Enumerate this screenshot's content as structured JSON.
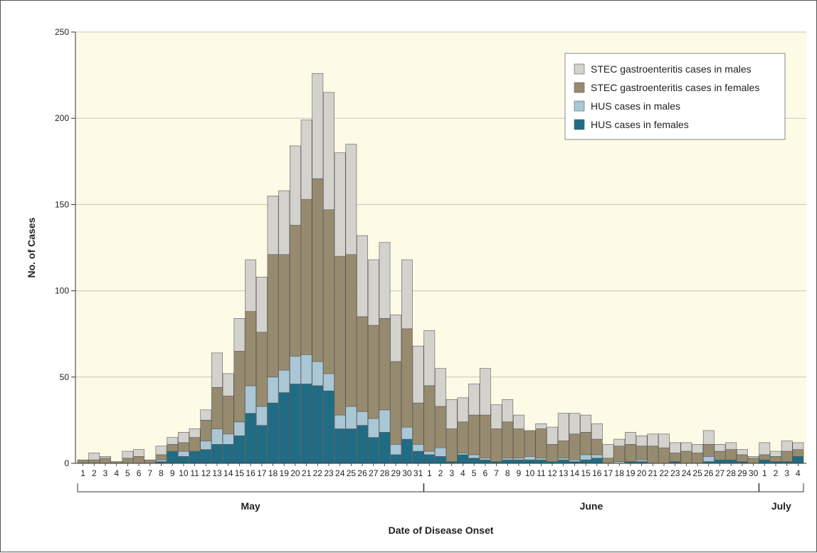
{
  "chart_data": {
    "type": "bar",
    "stacked": true,
    "xlabel": "Date of Disease Onset",
    "ylabel": "No. of Cases",
    "ylim": [
      0,
      250
    ],
    "yticks": [
      0,
      50,
      100,
      150,
      200,
      250
    ],
    "grid": true,
    "legend_position": "top-right",
    "colors": {
      "plot_background": "#fdfbe6",
      "stec_males": "#d4d2cd",
      "stec_females": "#978b6f",
      "hus_males": "#a9c7d5",
      "hus_females": "#1f6c84",
      "grid": "#c8c6b8"
    },
    "months": [
      {
        "label": "May",
        "first_index": 0,
        "last_index": 30
      },
      {
        "label": "June",
        "first_index": 31,
        "last_index": 60
      },
      {
        "label": "July",
        "first_index": 61,
        "last_index": 64
      }
    ],
    "categories": [
      "1",
      "2",
      "3",
      "4",
      "5",
      "6",
      "7",
      "8",
      "9",
      "10",
      "11",
      "12",
      "13",
      "14",
      "15",
      "16",
      "17",
      "18",
      "19",
      "20",
      "21",
      "22",
      "23",
      "24",
      "25",
      "26",
      "27",
      "28",
      "29",
      "30",
      "31",
      "1",
      "2",
      "3",
      "4",
      "5",
      "6",
      "7",
      "8",
      "9",
      "10",
      "11",
      "12",
      "13",
      "14",
      "15",
      "16",
      "17",
      "18",
      "19",
      "20",
      "21",
      "22",
      "23",
      "24",
      "25",
      "26",
      "27",
      "28",
      "29",
      "30",
      "1",
      "2",
      "3",
      "4"
    ],
    "series": [
      {
        "name": "HUS cases in females",
        "values": [
          0,
          0,
          0,
          0,
          0,
          0,
          0,
          1,
          7,
          4,
          7,
          8,
          11,
          11,
          16,
          29,
          22,
          35,
          41,
          46,
          46,
          45,
          42,
          20,
          20,
          22,
          15,
          18,
          5,
          14,
          7,
          5,
          4,
          1,
          5,
          3,
          2,
          1,
          2,
          2,
          2,
          2,
          1,
          2,
          1,
          2,
          3,
          0,
          0,
          1,
          1,
          0,
          0,
          1,
          0,
          0,
          1,
          2,
          2,
          1,
          0,
          2,
          1,
          1,
          4
        ]
      },
      {
        "name": "HUS cases in males",
        "values": [
          0,
          0,
          0,
          0,
          0,
          0,
          0,
          1,
          0,
          3,
          0,
          5,
          9,
          6,
          8,
          16,
          11,
          15,
          13,
          16,
          17,
          14,
          10,
          8,
          13,
          8,
          11,
          13,
          6,
          7,
          4,
          2,
          5,
          0,
          1,
          2,
          1,
          0,
          1,
          1,
          2,
          1,
          0,
          1,
          1,
          3,
          2,
          0,
          1,
          0,
          1,
          0,
          0,
          0,
          0,
          0,
          3,
          0,
          0,
          0,
          0,
          0,
          0,
          0,
          0
        ]
      },
      {
        "name": "STEC gastroenteritis cases in females",
        "values": [
          2,
          2,
          3,
          1,
          3,
          4,
          2,
          3,
          4,
          5,
          8,
          12,
          24,
          22,
          41,
          43,
          43,
          71,
          67,
          76,
          90,
          106,
          95,
          92,
          88,
          55,
          54,
          53,
          48,
          57,
          24,
          38,
          24,
          19,
          18,
          23,
          25,
          19,
          21,
          17,
          15,
          17,
          10,
          10,
          15,
          13,
          9,
          3,
          9,
          10,
          8,
          10,
          9,
          5,
          7,
          6,
          7,
          5,
          6,
          4,
          3,
          3,
          3,
          6,
          4
        ]
      },
      {
        "name": "STEC gastroenteritis cases in males",
        "values": [
          0,
          4,
          1,
          0,
          4,
          4,
          0,
          5,
          4,
          6,
          5,
          6,
          20,
          13,
          19,
          30,
          32,
          34,
          37,
          46,
          46,
          61,
          68,
          60,
          64,
          47,
          38,
          44,
          27,
          40,
          33,
          32,
          22,
          17,
          14,
          18,
          27,
          14,
          13,
          8,
          0,
          3,
          10,
          16,
          12,
          10,
          9,
          8,
          4,
          7,
          6,
          7,
          8,
          6,
          5,
          5,
          8,
          4,
          4,
          3,
          1,
          7,
          3,
          6,
          4
        ]
      }
    ],
    "legend": [
      "STEC gastroenteritis cases in males",
      "STEC gastroenteritis cases in females",
      "HUS cases in males",
      "HUS cases in females"
    ]
  }
}
